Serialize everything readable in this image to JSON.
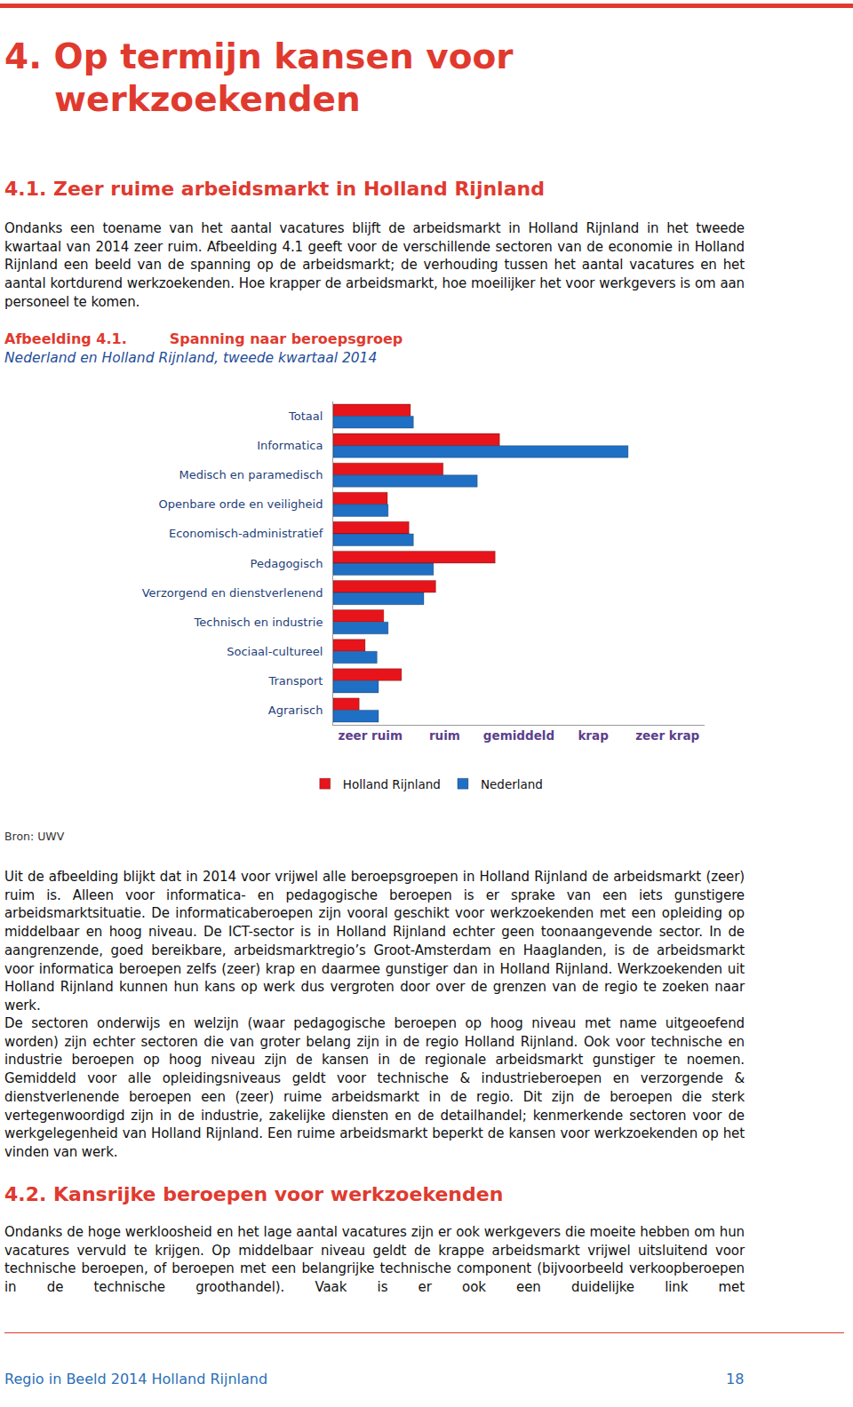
{
  "document": {
    "heading": "4. Op termijn kansen voor werkzoekenden",
    "section_1_title": "4.1. Zeer ruime arbeidsmarkt in Holland Rijnland",
    "intro": "Ondanks een toename van het aantal vacatures blijft de arbeidsmarkt in Holland Rijnland in het tweede kwartaal van 2014 zeer ruim. Afbeelding 4.1 geeft voor de verschillende sectoren van de economie in Holland Rijnland een beeld van de spanning op de arbeidsmarkt; de verhouding tussen het aantal vacatures en het aantal kortdurend werkzoekenden. Hoe krapper de arbeidsmarkt, hoe moeilijker het voor werkgevers is om aan personeel te komen.",
    "figure_label": "Afbeelding 4.1.",
    "source": "Bron: UWV",
    "paragraphs": [
      "Uit de afbeelding blijkt dat in 2014 voor vrijwel alle beroepsgroepen in Holland Rijnland de arbeidsmarkt (zeer) ruim is. Alleen voor informatica- en pedagogische beroepen is er sprake van een iets gunstigere arbeidsmarktsituatie. De informaticaberoepen zijn vooral geschikt voor werkzoekenden met een opleiding op middelbaar en hoog niveau. De ICT-sector is in Holland Rijnland echter geen toonaangevende sector. In de aangrenzende, goed bereikbare, arbeidsmarktregio’s Groot-Amsterdam en Haaglanden, is de arbeidsmarkt voor informatica beroepen zelfs (zeer) krap en daarmee gunstiger dan in Holland Rijnland. Werkzoekenden uit Holland Rijnland kunnen hun kans op werk dus vergroten door over de grenzen van de regio te zoeken naar werk.",
      "De sectoren onderwijs en welzijn  (waar pedagogische beroepen op hoog niveau met name uitgeoefend worden) zijn echter sectoren die van groter belang zijn in de regio Holland Rijnland. Ook voor technische en industrie beroepen op hoog niveau zijn de kansen in de regionale arbeidsmarkt gunstiger te noemen. Gemiddeld voor alle opleidingsniveaus geldt voor technische & industrieberoepen en verzorgende & dienstverlenende beroepen een (zeer) ruime arbeidsmarkt in de regio. Dit zijn de beroepen die sterk vertegenwoordigd zijn in de industrie, zakelijke diensten en de detailhandel; kenmerkende sectoren voor de werkgelegenheid van Holland Rijnland. Een ruime arbeidsmarkt beperkt de kansen voor werkzoekenden op het vinden van werk."
    ],
    "section_2_title": "4.2. Kansrijke beroepen voor werkzoekenden",
    "section_2_text": "Ondanks de hoge werkloosheid en het lage aantal vacatures zijn er ook werkgevers die moeite hebben om hun vacatures vervuld te krijgen. Op middelbaar niveau geldt de krappe arbeidsmarkt vrijwel uitsluitend voor technische beroepen, of beroepen met een belangrijke technische component (bijvoorbeeld verkoopberoepen in de technische groothandel). Vaak is er ook een duidelijke link met",
    "footer_left": "Regio in Beeld 2014 Holland Rijnland",
    "footer_page": "18"
  },
  "chart_data": {
    "type": "bar",
    "orientation": "horizontal",
    "title": "Spanning naar beroepsgroep",
    "subtitle": "Nederland en Holland Rijnland, tweede kwartaal 2014",
    "categories": [
      "Totaal",
      "Informatica",
      "Medisch en paramedisch",
      "Openbare orde en veiligheid",
      "Economisch-administratief",
      "Pedagogisch",
      "Verzorgend en dienstverlenend",
      "Technisch en industrie",
      "Sociaal-cultureel",
      "Transport",
      "Agrarisch"
    ],
    "series": [
      {
        "name": "Holland Rijnland",
        "color": "#e8141b",
        "values": [
          1.04,
          2.24,
          1.48,
          0.73,
          1.02,
          2.18,
          1.38,
          0.68,
          0.43,
          0.92,
          0.35
        ]
      },
      {
        "name": "Nederland",
        "color": "#1f6fc5",
        "values": [
          1.08,
          3.97,
          1.94,
          0.74,
          1.08,
          1.35,
          1.22,
          0.74,
          0.59,
          0.61,
          0.61
        ]
      }
    ],
    "xlim": [
      0,
      5
    ],
    "xticks": [
      {
        "value": 0.5,
        "label": "zeer ruim"
      },
      {
        "value": 1.5,
        "label": "ruim"
      },
      {
        "value": 2.5,
        "label": "gemiddeld"
      },
      {
        "value": 3.5,
        "label": "krap"
      },
      {
        "value": 4.5,
        "label": "zeer krap"
      }
    ],
    "grid": false,
    "legend": "bottom"
  }
}
